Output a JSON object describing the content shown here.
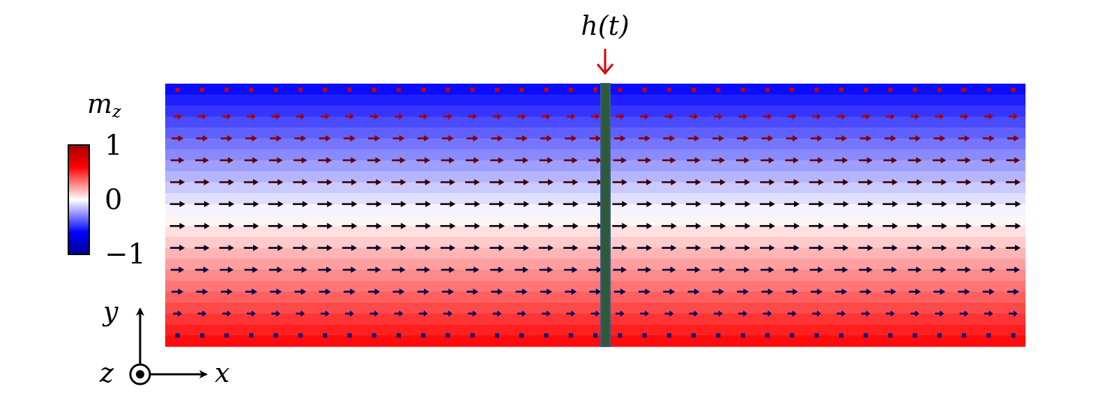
{
  "field_label": "h(t)",
  "colorbar": {
    "label_symbol": "m",
    "label_subscript": "z",
    "tick_max": "1",
    "tick_mid": "0",
    "tick_min": "−1",
    "range": [
      -1,
      1
    ]
  },
  "axes": {
    "y_label": "y",
    "x_label": "x",
    "z_label": "z"
  },
  "texture": {
    "rows": 12,
    "columns": 35,
    "mz_top": -1,
    "mz_bottom": 1
  },
  "colors": {
    "negative": "#0000ff",
    "zero": "#ffffff",
    "positive": "#ff0000",
    "arrow_top": "#cc0000",
    "arrow_mid": "#000000",
    "arrow_bottom": "#000080",
    "field_arrow": "#dd0000",
    "strip": "#2e5a3c"
  }
}
